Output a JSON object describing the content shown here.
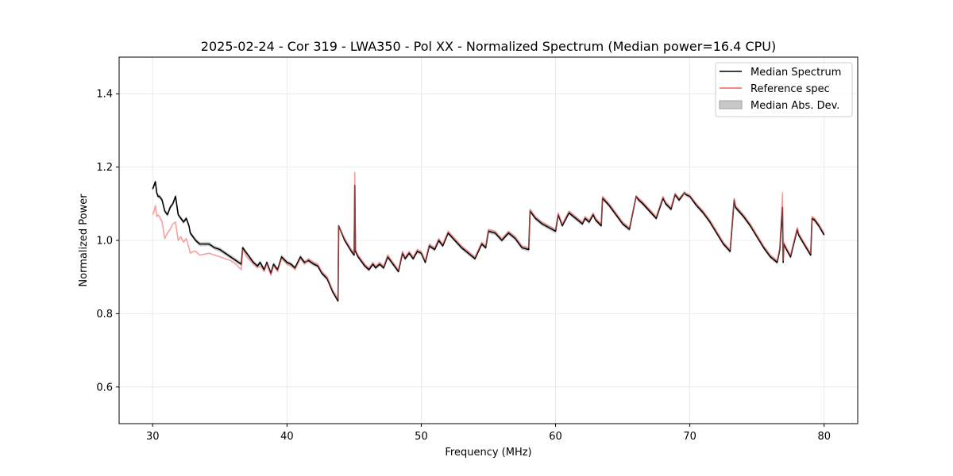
{
  "chart_data": {
    "type": "line",
    "title": "2025-02-24 - Cor 319 - LWA350 - Pol XX - Normalized Spectrum (Median power=16.4 CPU)",
    "xlabel": "Frequency (MHz)",
    "ylabel": "Normalized Power",
    "xlim": [
      27.5,
      82.5
    ],
    "ylim": [
      0.5,
      1.5
    ],
    "xticks": [
      30,
      40,
      50,
      60,
      70,
      80
    ],
    "yticks": [
      0.6,
      0.8,
      1.0,
      1.2,
      1.4
    ],
    "grid": true,
    "legend_position": "top-right",
    "colors": {
      "median": "#000000",
      "reference": "#f26161",
      "mad": "#c8c8c8",
      "overlap": "#8b0000"
    },
    "series": [
      {
        "name": "Median Spectrum",
        "x": [
          30.0,
          30.1,
          30.2,
          30.3,
          30.4,
          30.5,
          30.7,
          30.9,
          31.1,
          31.3,
          31.5,
          31.7,
          31.9,
          32.1,
          32.3,
          32.5,
          32.7,
          32.8,
          33.0,
          33.2,
          33.5,
          33.8,
          34.2,
          34.6,
          35.0,
          35.4,
          35.8,
          36.2,
          36.6,
          36.7,
          37.0,
          37.5,
          37.8,
          38.0,
          38.3,
          38.5,
          38.8,
          39.0,
          39.3,
          39.6,
          40.0,
          40.3,
          40.6,
          41.0,
          41.3,
          41.6,
          42.0,
          42.3,
          42.6,
          43.0,
          43.4,
          43.8,
          43.85,
          44.3,
          44.8,
          45.0,
          45.05,
          45.1,
          45.3,
          45.5,
          45.8,
          46.1,
          46.4,
          46.6,
          46.9,
          47.2,
          47.5,
          47.8,
          48.0,
          48.3,
          48.6,
          48.8,
          49.1,
          49.4,
          49.7,
          50.0,
          50.3,
          50.6,
          51.0,
          51.3,
          51.6,
          52.0,
          52.5,
          53.0,
          53.5,
          54.0,
          54.5,
          54.8,
          55.0,
          55.5,
          56.0,
          56.5,
          57.0,
          57.5,
          58.0,
          58.1,
          58.5,
          59.0,
          59.5,
          60.0,
          60.2,
          60.5,
          61.0,
          61.5,
          62.0,
          62.2,
          62.5,
          62.8,
          63.0,
          63.4,
          63.5,
          64.0,
          64.5,
          65.0,
          65.5,
          66.0,
          66.2,
          66.5,
          67.0,
          67.5,
          68.0,
          68.2,
          68.6,
          68.9,
          69.2,
          69.6,
          69.7,
          70.0,
          70.5,
          71.0,
          71.5,
          72.0,
          72.5,
          73.0,
          73.3,
          73.4,
          74.0,
          74.5,
          75.0,
          75.5,
          76.0,
          76.5,
          76.7,
          76.9,
          76.95,
          77.0,
          77.2,
          77.5,
          78.0,
          78.1,
          78.5,
          79.0,
          79.1,
          79.3,
          79.6,
          80.0
        ],
        "y": [
          1.14,
          1.15,
          1.16,
          1.13,
          1.12,
          1.12,
          1.11,
          1.08,
          1.07,
          1.09,
          1.1,
          1.12,
          1.07,
          1.06,
          1.05,
          1.06,
          1.04,
          1.02,
          1.01,
          1.0,
          0.99,
          0.99,
          0.99,
          0.98,
          0.975,
          0.965,
          0.955,
          0.945,
          0.935,
          0.98,
          0.965,
          0.94,
          0.93,
          0.94,
          0.92,
          0.94,
          0.91,
          0.935,
          0.92,
          0.955,
          0.94,
          0.935,
          0.925,
          0.955,
          0.94,
          0.945,
          0.935,
          0.93,
          0.91,
          0.895,
          0.86,
          0.835,
          1.04,
          1.0,
          0.97,
          0.96,
          1.15,
          0.97,
          0.955,
          0.945,
          0.93,
          0.92,
          0.935,
          0.925,
          0.935,
          0.925,
          0.955,
          0.94,
          0.93,
          0.915,
          0.965,
          0.95,
          0.965,
          0.95,
          0.97,
          0.965,
          0.94,
          0.985,
          0.975,
          1.0,
          0.985,
          1.02,
          1.0,
          0.98,
          0.965,
          0.95,
          0.99,
          0.98,
          1.025,
          1.02,
          1.0,
          1.02,
          1.005,
          0.98,
          0.975,
          1.08,
          1.06,
          1.045,
          1.035,
          1.025,
          1.07,
          1.04,
          1.075,
          1.06,
          1.045,
          1.06,
          1.05,
          1.07,
          1.055,
          1.04,
          1.115,
          1.095,
          1.07,
          1.045,
          1.03,
          1.12,
          1.11,
          1.1,
          1.08,
          1.06,
          1.115,
          1.1,
          1.085,
          1.125,
          1.11,
          1.13,
          1.125,
          1.12,
          1.095,
          1.075,
          1.05,
          1.02,
          0.99,
          0.97,
          1.11,
          1.09,
          1.065,
          1.04,
          1.01,
          0.98,
          0.955,
          0.94,
          0.975,
          1.09,
          0.94,
          0.99,
          0.975,
          0.955,
          1.03,
          1.015,
          0.99,
          0.96,
          1.06,
          1.055,
          1.04,
          1.015
        ]
      },
      {
        "name": "Reference spec",
        "x": [
          30.0,
          30.1,
          30.2,
          30.3,
          30.4,
          30.5,
          30.7,
          30.9,
          31.1,
          31.3,
          31.5,
          31.7,
          31.9,
          32.1,
          32.3,
          32.5,
          32.7,
          32.8,
          33.0,
          33.2,
          33.5,
          33.8,
          34.2,
          34.6,
          35.0,
          35.4,
          35.8,
          36.2,
          36.6,
          36.7,
          37.0,
          37.5,
          37.8,
          38.0,
          38.3,
          38.5,
          38.8,
          39.0,
          39.3,
          39.6,
          40.0,
          40.3,
          40.6,
          41.0,
          41.3,
          41.6,
          42.0,
          42.3,
          42.6,
          43.0,
          43.4,
          43.8,
          43.85,
          44.3,
          44.8,
          45.0,
          45.05,
          45.1,
          45.3,
          45.5,
          45.8,
          46.1,
          46.4,
          46.6,
          46.9,
          47.2,
          47.5,
          47.8,
          48.0,
          48.3,
          48.6,
          48.8,
          49.1,
          49.4,
          49.7,
          50.0,
          50.3,
          50.6,
          51.0,
          51.3,
          51.6,
          52.0,
          52.5,
          53.0,
          53.5,
          54.0,
          54.5,
          54.8,
          55.0,
          55.5,
          56.0,
          56.5,
          57.0,
          57.5,
          58.0,
          58.1,
          58.5,
          59.0,
          59.5,
          60.0,
          60.2,
          60.5,
          61.0,
          61.5,
          62.0,
          62.2,
          62.5,
          62.8,
          63.0,
          63.4,
          63.5,
          64.0,
          64.5,
          65.0,
          65.5,
          66.0,
          66.2,
          66.5,
          67.0,
          67.5,
          68.0,
          68.2,
          68.6,
          68.9,
          69.2,
          69.6,
          69.7,
          70.0,
          70.5,
          71.0,
          71.5,
          72.0,
          72.5,
          73.0,
          73.3,
          73.4,
          74.0,
          74.5,
          75.0,
          75.5,
          76.0,
          76.5,
          76.7,
          76.9,
          76.95,
          77.0,
          77.2,
          77.5,
          78.0,
          78.1,
          78.5,
          79.0,
          79.1,
          79.3,
          79.6,
          80.0
        ],
        "y": [
          1.07,
          1.08,
          1.095,
          1.065,
          1.07,
          1.065,
          1.05,
          1.005,
          1.02,
          1.03,
          1.045,
          1.05,
          1.0,
          1.01,
          0.995,
          1.005,
          0.98,
          0.965,
          0.97,
          0.97,
          0.96,
          0.962,
          0.965,
          0.96,
          0.955,
          0.95,
          0.945,
          0.935,
          0.92,
          0.975,
          0.955,
          0.935,
          0.925,
          0.93,
          0.915,
          0.935,
          0.905,
          0.93,
          0.915,
          0.95,
          0.935,
          0.93,
          0.92,
          0.95,
          0.935,
          0.95,
          0.94,
          0.935,
          0.915,
          0.9,
          0.865,
          0.84,
          1.04,
          1.005,
          0.975,
          0.965,
          1.185,
          0.975,
          0.96,
          0.95,
          0.935,
          0.925,
          0.94,
          0.93,
          0.94,
          0.93,
          0.96,
          0.945,
          0.935,
          0.92,
          0.97,
          0.955,
          0.97,
          0.955,
          0.975,
          0.97,
          0.945,
          0.99,
          0.98,
          1.005,
          0.99,
          1.025,
          1.005,
          0.985,
          0.97,
          0.955,
          0.995,
          0.985,
          1.03,
          1.025,
          1.005,
          1.025,
          1.01,
          0.985,
          0.98,
          1.085,
          1.065,
          1.05,
          1.04,
          1.03,
          1.075,
          1.045,
          1.08,
          1.065,
          1.05,
          1.065,
          1.055,
          1.075,
          1.06,
          1.045,
          1.12,
          1.1,
          1.075,
          1.05,
          1.035,
          1.12,
          1.115,
          1.105,
          1.085,
          1.065,
          1.12,
          1.105,
          1.09,
          1.128,
          1.115,
          1.13,
          1.128,
          1.123,
          1.1,
          1.08,
          1.055,
          1.025,
          0.995,
          0.975,
          1.115,
          1.095,
          1.07,
          1.045,
          1.015,
          0.985,
          0.96,
          0.945,
          0.98,
          1.13,
          0.945,
          0.995,
          0.98,
          0.96,
          1.035,
          1.02,
          0.995,
          0.965,
          1.065,
          1.06,
          1.045,
          1.02
        ]
      }
    ],
    "legend": [
      {
        "label": "Median Spectrum",
        "kind": "line",
        "color": "#000000"
      },
      {
        "label": "Reference spec",
        "kind": "line",
        "color": "#f26161"
      },
      {
        "label": "Median Abs. Dev.",
        "kind": "patch",
        "color": "#c8c8c8"
      }
    ]
  }
}
